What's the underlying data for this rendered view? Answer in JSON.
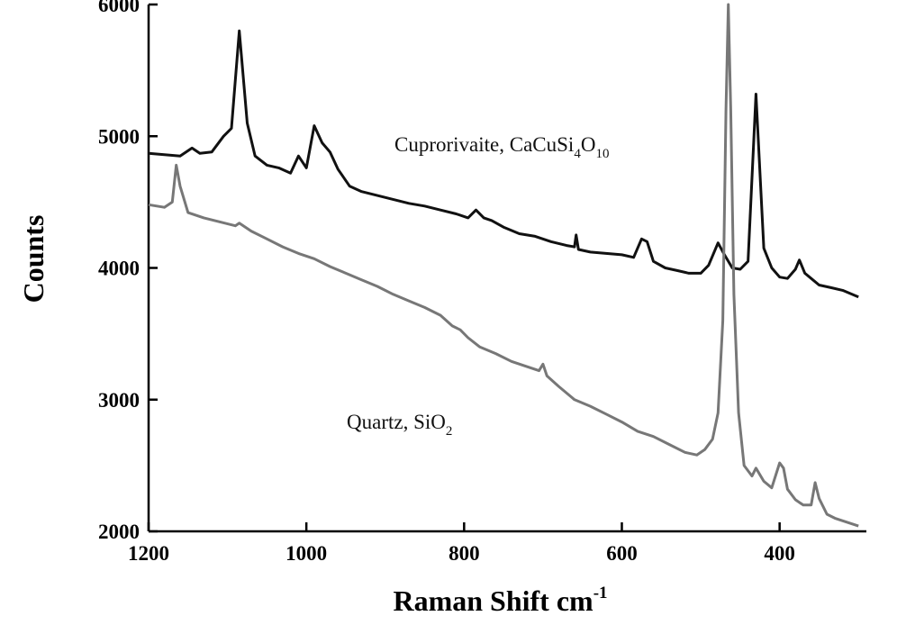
{
  "chart_data": {
    "type": "line",
    "ylabel": "Counts",
    "xlabel": [
      "Raman Shift cm",
      "-1"
    ],
    "xlim": [
      1200,
      290
    ],
    "xticks": [
      1200,
      1000,
      800,
      600,
      400
    ],
    "ylim": [
      2000,
      6000
    ],
    "yticks": [
      2000,
      3000,
      4000,
      5000,
      6000
    ],
    "series": [
      {
        "label": [
          "Cuprorivaite, CaCuSi",
          "4",
          "O",
          "10"
        ],
        "color": "#111111",
        "x": [
          1200,
          1180,
          1160,
          1145,
          1135,
          1120,
          1105,
          1095,
          1085,
          1075,
          1065,
          1050,
          1035,
          1020,
          1010,
          1000,
          990,
          980,
          970,
          960,
          945,
          930,
          910,
          890,
          870,
          850,
          830,
          810,
          795,
          785,
          775,
          765,
          750,
          730,
          710,
          690,
          670,
          660,
          658,
          655,
          640,
          620,
          600,
          585,
          575,
          568,
          560,
          545,
          530,
          515,
          500,
          490,
          478,
          470,
          460,
          450,
          440,
          430,
          420,
          410,
          400,
          390,
          380,
          375,
          368,
          360,
          350,
          335,
          320,
          300
        ],
        "values": [
          4870,
          4860,
          4850,
          4910,
          4870,
          4880,
          5000,
          5060,
          5800,
          5100,
          4850,
          4780,
          4760,
          4720,
          4850,
          4760,
          5080,
          4950,
          4880,
          4750,
          4620,
          4580,
          4550,
          4520,
          4490,
          4470,
          4440,
          4410,
          4380,
          4440,
          4380,
          4360,
          4310,
          4260,
          4240,
          4200,
          4170,
          4160,
          4250,
          4140,
          4120,
          4110,
          4100,
          4080,
          4220,
          4200,
          4050,
          4000,
          3980,
          3960,
          3960,
          4020,
          4190,
          4100,
          4000,
          3990,
          4050,
          5320,
          4150,
          4000,
          3930,
          3920,
          3990,
          4060,
          3960,
          3920,
          3870,
          3850,
          3830,
          3780
        ]
      },
      {
        "label": [
          "Quartz, SiO",
          "2"
        ],
        "color": "#777777",
        "x": [
          1200,
          1180,
          1170,
          1165,
          1160,
          1150,
          1130,
          1110,
          1090,
          1085,
          1070,
          1050,
          1030,
          1010,
          990,
          970,
          950,
          930,
          910,
          890,
          870,
          850,
          830,
          815,
          805,
          795,
          780,
          760,
          740,
          720,
          705,
          700,
          695,
          680,
          660,
          640,
          620,
          600,
          580,
          560,
          540,
          520,
          505,
          495,
          485,
          478,
          472,
          468,
          465,
          462,
          458,
          452,
          445,
          435,
          430,
          420,
          410,
          400,
          395,
          390,
          380,
          370,
          360,
          355,
          350,
          340,
          330,
          320,
          300
        ],
        "values": [
          4480,
          4460,
          4500,
          4780,
          4620,
          4420,
          4380,
          4350,
          4320,
          4340,
          4280,
          4220,
          4160,
          4110,
          4070,
          4010,
          3960,
          3910,
          3860,
          3800,
          3750,
          3700,
          3640,
          3560,
          3530,
          3470,
          3400,
          3350,
          3290,
          3250,
          3220,
          3270,
          3180,
          3100,
          3000,
          2950,
          2890,
          2830,
          2760,
          2720,
          2660,
          2600,
          2580,
          2620,
          2700,
          2900,
          3600,
          5200,
          6000,
          5200,
          3800,
          2900,
          2500,
          2420,
          2480,
          2380,
          2330,
          2520,
          2480,
          2320,
          2240,
          2200,
          2200,
          2370,
          2250,
          2130,
          2100,
          2080,
          2040
        ]
      }
    ]
  }
}
